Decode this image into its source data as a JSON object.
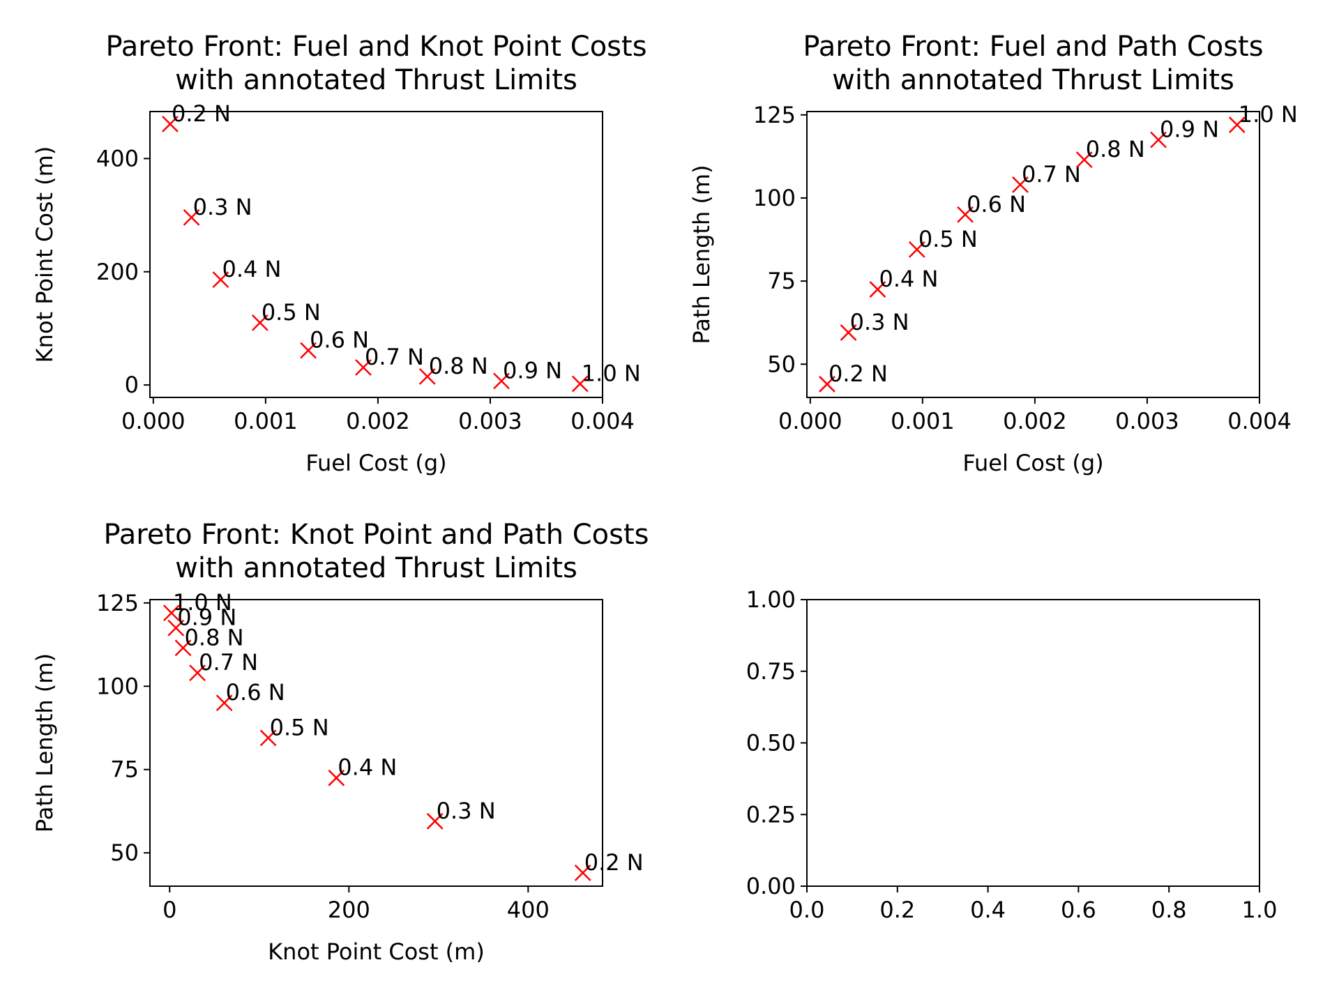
{
  "colors": {
    "marker": "#ff0000",
    "axes": "#000000",
    "background": "#ffffff"
  },
  "chart_data": [
    {
      "type": "scatter",
      "title": "Pareto Front: Fuel and Knot Point Costs\nwith annotated Thrust Limits",
      "xlabel": "Fuel Cost (g)",
      "ylabel": "Knot Point Cost (m)",
      "xlim": [
        -3e-05,
        0.004
      ],
      "ylim": [
        -22,
        483
      ],
      "xticks": [
        0.0,
        0.001,
        0.002,
        0.003,
        0.004
      ],
      "xtick_labels": [
        "0.000",
        "0.001",
        "0.002",
        "0.003",
        "0.004"
      ],
      "yticks": [
        0,
        200,
        400
      ],
      "ytick_labels": [
        "0",
        "200",
        "400"
      ],
      "marker": "x",
      "x": [
        0.00015,
        0.00034,
        0.0006,
        0.00095,
        0.00138,
        0.00187,
        0.00244,
        0.0031,
        0.0038
      ],
      "y": [
        461,
        296,
        186,
        110,
        61,
        31,
        15,
        7,
        2
      ],
      "labels": [
        "0.2 N",
        "0.3 N",
        "0.4 N",
        "0.5 N",
        "0.6 N",
        "0.7 N",
        "0.8 N",
        "0.9 N",
        "1.0 N"
      ]
    },
    {
      "type": "scatter",
      "title": "Pareto Front: Fuel and Path Costs\nwith annotated Thrust Limits",
      "xlabel": "Fuel Cost (g)",
      "ylabel": "Path Length (m)",
      "xlim": [
        -3e-05,
        0.004
      ],
      "ylim": [
        40,
        126
      ],
      "xticks": [
        0.0,
        0.001,
        0.002,
        0.003,
        0.004
      ],
      "xtick_labels": [
        "0.000",
        "0.001",
        "0.002",
        "0.003",
        "0.004"
      ],
      "yticks": [
        50,
        75,
        100,
        125
      ],
      "ytick_labels": [
        "50",
        "75",
        "100",
        "125"
      ],
      "marker": "x",
      "x": [
        0.00015,
        0.00034,
        0.0006,
        0.00095,
        0.00138,
        0.00187,
        0.00244,
        0.0031,
        0.0038
      ],
      "y": [
        44,
        59.5,
        72.5,
        84.5,
        95,
        104,
        111.5,
        117.5,
        122
      ],
      "labels": [
        "0.2 N",
        "0.3 N",
        "0.4 N",
        "0.5 N",
        "0.6 N",
        "0.7 N",
        "0.8 N",
        "0.9 N",
        "1.0 N"
      ]
    },
    {
      "type": "scatter",
      "title": "Pareto Front: Knot Point and Path Costs\nwith annotated Thrust Limits",
      "xlabel": "Knot Point Cost (m)",
      "ylabel": "Path Length (m)",
      "xlim": [
        -22,
        483
      ],
      "ylim": [
        40,
        126
      ],
      "xticks": [
        0,
        200,
        400
      ],
      "xtick_labels": [
        "0",
        "200",
        "400"
      ],
      "yticks": [
        50,
        75,
        100,
        125
      ],
      "ytick_labels": [
        "50",
        "75",
        "100",
        "125"
      ],
      "marker": "x",
      "x": [
        461,
        296,
        186,
        110,
        61,
        31,
        15,
        7,
        2
      ],
      "y": [
        44,
        59.5,
        72.5,
        84.5,
        95,
        104,
        111.5,
        117.5,
        122
      ],
      "labels": [
        "0.2 N",
        "0.3 N",
        "0.4 N",
        "0.5 N",
        "0.6 N",
        "0.7 N",
        "0.8 N",
        "0.9 N",
        "1.0 N"
      ]
    },
    {
      "type": "scatter",
      "title": "",
      "xlabel": "",
      "ylabel": "",
      "xlim": [
        0,
        1
      ],
      "ylim": [
        0,
        1
      ],
      "xticks": [
        0.0,
        0.2,
        0.4,
        0.6,
        0.8,
        1.0
      ],
      "xtick_labels": [
        "0.0",
        "0.2",
        "0.4",
        "0.6",
        "0.8",
        "1.0"
      ],
      "yticks": [
        0.0,
        0.25,
        0.5,
        0.75,
        1.0
      ],
      "ytick_labels": [
        "0.00",
        "0.25",
        "0.50",
        "0.75",
        "1.00"
      ],
      "x": [],
      "y": [],
      "labels": []
    }
  ]
}
